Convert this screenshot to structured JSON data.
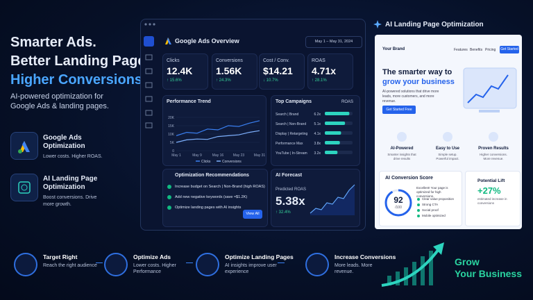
{
  "hero": {
    "line1": "Smarter Ads.",
    "line2": "Better Landing Pages.",
    "line3": "Higher Conversions.",
    "subtitle": "AI-powered optimization for Google Ads & landing pages."
  },
  "features": [
    {
      "title": "Google Ads Optimization",
      "text": "Lower costs. Higher ROAS."
    },
    {
      "title": "AI Landing Page Optimization",
      "text": "Boost conversions. Drive more growth."
    }
  ],
  "dashboard": {
    "title": "Google Ads Overview",
    "date_range": "May 1 – May 31, 2024",
    "kpis": [
      {
        "label": "Clicks",
        "value": "12.4K",
        "change": "↑ 15.6%"
      },
      {
        "label": "Conversions",
        "value": "1.56K",
        "change": "↑ 24.3%"
      },
      {
        "label": "Cost / Conv.",
        "value": "$14.21",
        "change": "↓ 10.7%"
      },
      {
        "label": "ROAS",
        "value": "4.71x",
        "change": "↑ 28.1%"
      }
    ],
    "trend": {
      "type": "line",
      "title": "Performance Trend",
      "categories": [
        "May 1",
        null,
        "May 9",
        null,
        "May 16",
        null,
        "May 23",
        null,
        "May 31"
      ],
      "series": [
        {
          "name": "Clicks",
          "color": "#3b82f6",
          "values": [
            9000,
            11000,
            10500,
            13000,
            12500,
            15000,
            14500,
            16500,
            18000
          ]
        },
        {
          "name": "Conversions",
          "color": "#7fb2ff",
          "values": [
            5000,
            6500,
            7000,
            6800,
            8500,
            9000,
            9500,
            11000,
            12000
          ]
        }
      ],
      "ylim": [
        0,
        20000
      ],
      "yticks": [
        {
          "value": 0,
          "label": "0"
        },
        {
          "value": 5000,
          "label": "5K"
        },
        {
          "value": 10000,
          "label": "10K"
        },
        {
          "value": 15000,
          "label": "15K"
        },
        {
          "value": 20000,
          "label": "20K"
        }
      ]
    },
    "campaigns": {
      "type": "bar",
      "title": "Top Campaigns",
      "value_header": "ROAS",
      "categories": [
        "Search | Brand",
        "Search | Non-Brand",
        "Display | Retargeting",
        "Performance Max",
        "YouTube | In-Stream"
      ],
      "values": [
        6.2,
        5.1,
        4.1,
        3.8,
        3.2
      ],
      "value_labels": [
        "6.2x",
        "5.1x",
        "4.1x",
        "3.8x",
        "3.2x"
      ],
      "xlim": [
        0,
        7
      ],
      "color": "#2dd4bf"
    },
    "recommendations": {
      "title": "Optimization Recommendations",
      "items": [
        "Increase budget on Search | Non-Brand (high ROAS)",
        "Add new negative keywords (save ≈$1.2K)",
        "Optimize landing pages with AI insights"
      ],
      "button": "View All"
    },
    "forecast": {
      "title": "AI Forecast",
      "label": "Predicted ROAS",
      "value": "5.38x",
      "change": "↑ 32.4%"
    }
  },
  "landing": {
    "section_title": "AI Landing Page Optimization",
    "brand": "Your Brand",
    "nav": [
      "Features",
      "Benefits",
      "Pricing"
    ],
    "nav_button": "Get Started",
    "headline1": "The smarter way to",
    "headline2": "grow your business",
    "body": "AI-powered solutions that drive more leads, more customers, and more revenue.",
    "cta": "Get Started Free",
    "benefits": [
      {
        "title": "AI-Powered",
        "text": "Smarter insights that drive results"
      },
      {
        "title": "Easy to Use",
        "text": "Simple setup. Powerful impact."
      },
      {
        "title": "Proven Results",
        "text": "Higher conversions. More revenue."
      }
    ],
    "score": {
      "title": "AI Conversion Score",
      "value": 92,
      "out_of": {
        "value": 100,
        "label": "/100"
      },
      "summary": "Excellent! Your page is optimized for high conversions.",
      "checks": [
        "Clear value proposition",
        "Strong CTA",
        "Social proof",
        "Mobile optimized"
      ]
    },
    "lift": {
      "title": "Potential Lift",
      "value": "+27%",
      "text": "estimated increase in conversions"
    }
  },
  "steps": [
    {
      "title": "Target Right",
      "text": "Reach the right audience"
    },
    {
      "title": "Optimize Ads",
      "text": "Lower costs. Higher Performance"
    },
    {
      "title": "Optimize Landing Pages",
      "text": "AI insights improve user experience"
    },
    {
      "title": "Increase Conversions",
      "text": "More leads. More revenue."
    }
  ],
  "tagline": {
    "line1": "Grow",
    "line2": "Your Business"
  }
}
